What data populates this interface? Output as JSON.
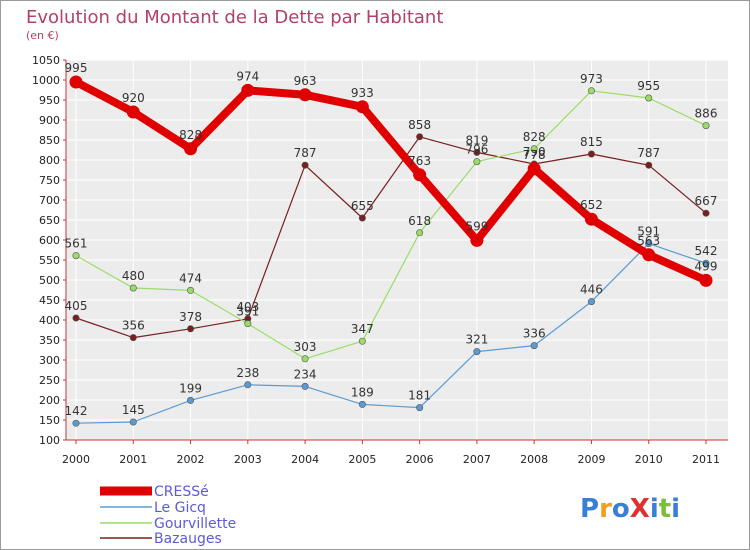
{
  "chart_data": {
    "type": "line",
    "title": "Evolution du Montant de la Dette par Habitant",
    "subtitle": "(en €)",
    "x": [
      "2000",
      "2001",
      "2002",
      "2003",
      "2004",
      "2005",
      "2006",
      "2007",
      "2008",
      "2009",
      "2010",
      "2011"
    ],
    "ylim": [
      100,
      1050
    ],
    "yticks": [
      100,
      150,
      200,
      250,
      300,
      350,
      400,
      450,
      500,
      550,
      600,
      650,
      700,
      750,
      800,
      850,
      900,
      950,
      1000,
      1050
    ],
    "grid": true,
    "legend_position": "bottom-left",
    "series": [
      {
        "name": "CRESSé",
        "color": "#e00000",
        "values": [
          995,
          920,
          828,
          974,
          963,
          933,
          763,
          599,
          778,
          652,
          563,
          499
        ]
      },
      {
        "name": "Le Gicq",
        "color": "#5b9bd5",
        "values": [
          142,
          145,
          199,
          238,
          234,
          189,
          181,
          321,
          336,
          446,
          591,
          542
        ]
      },
      {
        "name": "Gourvillette",
        "color": "#99dd66",
        "values": [
          561,
          480,
          474,
          391,
          303,
          347,
          618,
          796,
          828,
          973,
          955,
          886
        ]
      },
      {
        "name": "Bazauges",
        "color": "#7a1f1f",
        "values": [
          405,
          356,
          378,
          403,
          787,
          655,
          858,
          819,
          790,
          815,
          787,
          667
        ]
      }
    ]
  },
  "logo": {
    "text": "ProXiti"
  }
}
